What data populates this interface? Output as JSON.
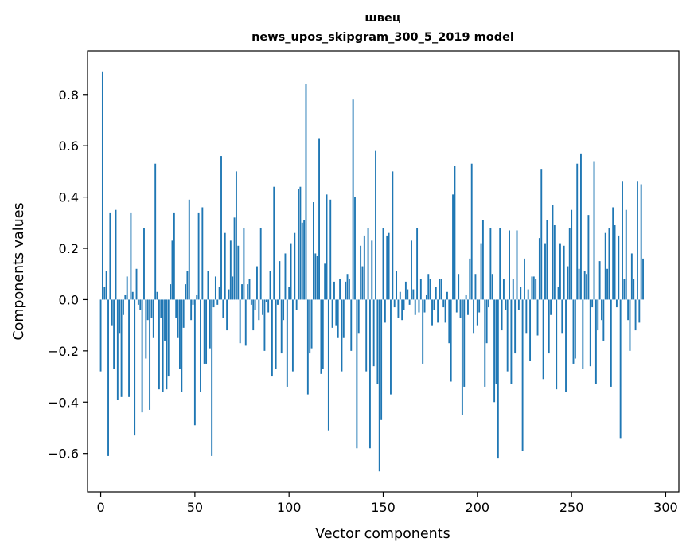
{
  "chart_data": {
    "type": "bar",
    "title_lines": [
      "швец",
      "news_upos_skipgram_300_5_2019 model"
    ],
    "xlabel": "Vector components",
    "ylabel": "Components values",
    "xlim": [
      -7,
      307
    ],
    "ylim": [
      -0.75,
      0.97
    ],
    "x_ticks": [
      0,
      50,
      100,
      150,
      200,
      250,
      300
    ],
    "x_tick_labels": [
      "0",
      "50",
      "100",
      "150",
      "200",
      "250",
      "300"
    ],
    "y_ticks": [
      0.8,
      0.6,
      0.4,
      0.2,
      0.0,
      -0.2,
      -0.4,
      -0.6
    ],
    "y_tick_labels": [
      "0.8",
      "0.6",
      "0.4",
      "0.2",
      "0.0",
      "−0.2",
      "−0.4",
      "−0.6"
    ],
    "bar_color": "#1f77b4",
    "grid": false,
    "values": [
      -0.28,
      0.89,
      0.05,
      0.11,
      -0.61,
      0.34,
      -0.1,
      -0.27,
      0.35,
      -0.39,
      -0.13,
      -0.38,
      -0.06,
      0.02,
      0.09,
      -0.38,
      0.34,
      0.03,
      -0.53,
      0.12,
      -0.02,
      -0.04,
      -0.44,
      0.28,
      -0.23,
      -0.08,
      -0.43,
      -0.07,
      -0.15,
      0.53,
      0.03,
      -0.35,
      -0.07,
      -0.36,
      -0.16,
      -0.35,
      -0.3,
      0.06,
      0.23,
      0.34,
      -0.07,
      -0.15,
      -0.27,
      -0.36,
      -0.11,
      0.06,
      0.11,
      0.39,
      -0.08,
      -0.02,
      -0.49,
      0.02,
      0.34,
      -0.36,
      0.36,
      -0.25,
      -0.25,
      0.11,
      -0.19,
      -0.61,
      -0.03,
      0.09,
      -0.02,
      0.05,
      0.56,
      -0.07,
      0.26,
      -0.12,
      0.04,
      0.23,
      0.09,
      0.32,
      0.5,
      0.21,
      -0.17,
      0.06,
      0.28,
      -0.18,
      0.06,
      0.08,
      -0.02,
      -0.12,
      -0.04,
      0.13,
      -0.08,
      0.28,
      -0.06,
      -0.2,
      -0.01,
      -0.05,
      0.11,
      -0.3,
      0.44,
      -0.27,
      -0.02,
      0.15,
      -0.21,
      -0.08,
      0.18,
      -0.34,
      0.05,
      0.22,
      -0.28,
      0.26,
      -0.04,
      0.43,
      0.44,
      0.3,
      0.31,
      0.84,
      -0.37,
      -0.21,
      -0.19,
      0.38,
      0.18,
      0.17,
      0.63,
      -0.29,
      -0.27,
      0.14,
      0.41,
      -0.51,
      0.39,
      -0.11,
      0.07,
      -0.1,
      -0.15,
      0.08,
      -0.28,
      -0.15,
      0.07,
      0.1,
      0.08,
      -0.2,
      0.78,
      0.4,
      -0.58,
      -0.13,
      0.21,
      0.13,
      0.25,
      -0.28,
      0.28,
      -0.58,
      0.23,
      -0.26,
      0.58,
      -0.33,
      -0.67,
      -0.47,
      0.28,
      -0.09,
      0.25,
      0.26,
      -0.37,
      0.5,
      -0.03,
      0.11,
      -0.07,
      0.03,
      -0.08,
      -0.04,
      0.07,
      0.04,
      -0.02,
      0.23,
      0.04,
      -0.06,
      0.28,
      -0.05,
      0.08,
      -0.25,
      -0.05,
      0.02,
      0.1,
      0.08,
      -0.1,
      -0.04,
      0.05,
      -0.09,
      0.08,
      0.08,
      -0.03,
      -0.09,
      0.03,
      -0.17,
      -0.32,
      0.41,
      0.52,
      -0.05,
      0.1,
      -0.07,
      -0.45,
      -0.34,
      0.02,
      -0.06,
      0.16,
      0.53,
      -0.13,
      0.1,
      -0.1,
      -0.05,
      0.22,
      0.31,
      -0.34,
      -0.17,
      -0.03,
      0.28,
      0.1,
      -0.4,
      -0.33,
      -0.62,
      0.28,
      -0.12,
      0.08,
      -0.04,
      -0.28,
      0.27,
      -0.33,
      0.08,
      -0.21,
      0.27,
      -0.04,
      0.05,
      -0.59,
      0.16,
      -0.13,
      0.04,
      -0.24,
      0.09,
      0.09,
      0.08,
      -0.14,
      0.24,
      0.51,
      -0.31,
      0.22,
      0.31,
      -0.21,
      -0.06,
      0.37,
      0.29,
      -0.35,
      0.05,
      0.22,
      -0.13,
      0.21,
      -0.36,
      0.13,
      0.28,
      0.35,
      -0.25,
      -0.23,
      0.53,
      0.12,
      0.57,
      -0.27,
      0.11,
      0.1,
      0.33,
      -0.26,
      -0.03,
      0.54,
      -0.33,
      -0.12,
      0.15,
      -0.08,
      -0.16,
      0.26,
      0.12,
      0.28,
      -0.34,
      0.36,
      0.29,
      -0.03,
      0.25,
      -0.54,
      0.46,
      0.08,
      0.35,
      -0.08,
      -0.2,
      0.18,
      0.08,
      -0.12,
      0.46,
      -0.09,
      0.45,
      0.16
    ]
  }
}
